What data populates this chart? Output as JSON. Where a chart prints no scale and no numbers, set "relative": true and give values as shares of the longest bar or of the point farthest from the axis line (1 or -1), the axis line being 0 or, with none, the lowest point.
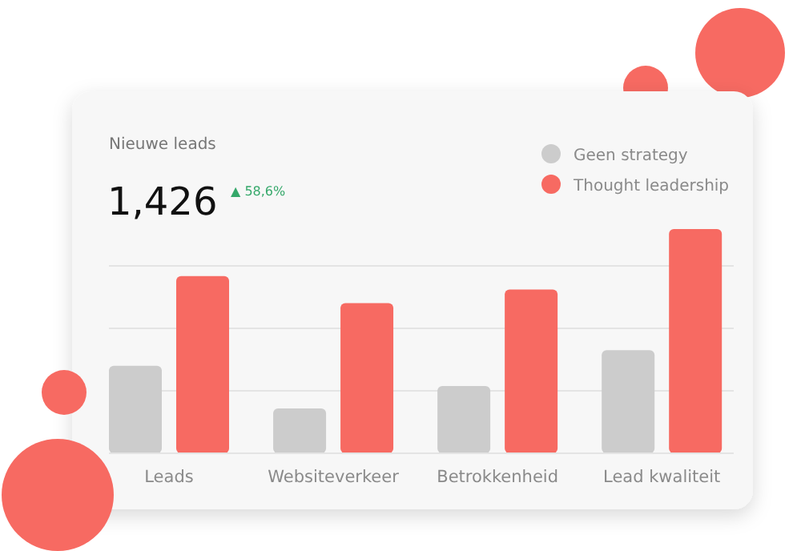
{
  "chart_data": {
    "type": "bar",
    "title": "Nieuwe leads",
    "annotations": [
      "1,426",
      "▲ 58,6%"
    ],
    "categories": [
      "Leads",
      "Websiteverkeer",
      "Betrokkenheid",
      "Lead kwaliteit"
    ],
    "relative": true,
    "grid": true,
    "legend": "top right",
    "series": [
      {
        "name": "Geen strategy",
        "color": "#cccccc",
        "values": [
          0.39,
          0.2,
          0.3,
          0.46
        ]
      },
      {
        "name": "Thought leadership",
        "color": "#f76a62",
        "values": [
          0.79,
          0.67,
          0.73,
          1
        ]
      }
    ]
  }
}
